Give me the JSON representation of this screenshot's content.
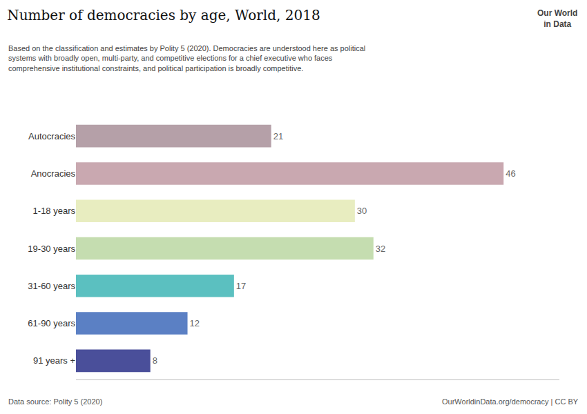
{
  "chart_data": {
    "type": "bar",
    "orientation": "horizontal",
    "title": "Number of democracies by age, World, 2018",
    "subtitle": "Based on the classification and estimates by Polity 5 (2020). Democracies are understood here as political\nsystems with broadly open, multi-party, and competitive elections for a chief executive who faces\ncomprehensive institutional constraints, and political participation is broadly competitive.",
    "categories": [
      "Autocracies",
      "Anocracies",
      "1-18 years",
      "19-30 years",
      "31-60 years",
      "61-90 years",
      "91 years +"
    ],
    "values": [
      21,
      46,
      30,
      32,
      17,
      12,
      8
    ],
    "colors": [
      "#b5a0a8",
      "#c9a8b0",
      "#e8edc0",
      "#c5ddb0",
      "#5bc0c0",
      "#5b80c4",
      "#4a4f9a"
    ],
    "xlim": [
      0,
      52
    ],
    "tick_labels": "y",
    "data_labels": true,
    "grid": false,
    "annotations": [
      "Data source: Polity 5 (2020)",
      "OurWorldinData.org/democracy | CC BY",
      "Our World\nin Data"
    ]
  }
}
